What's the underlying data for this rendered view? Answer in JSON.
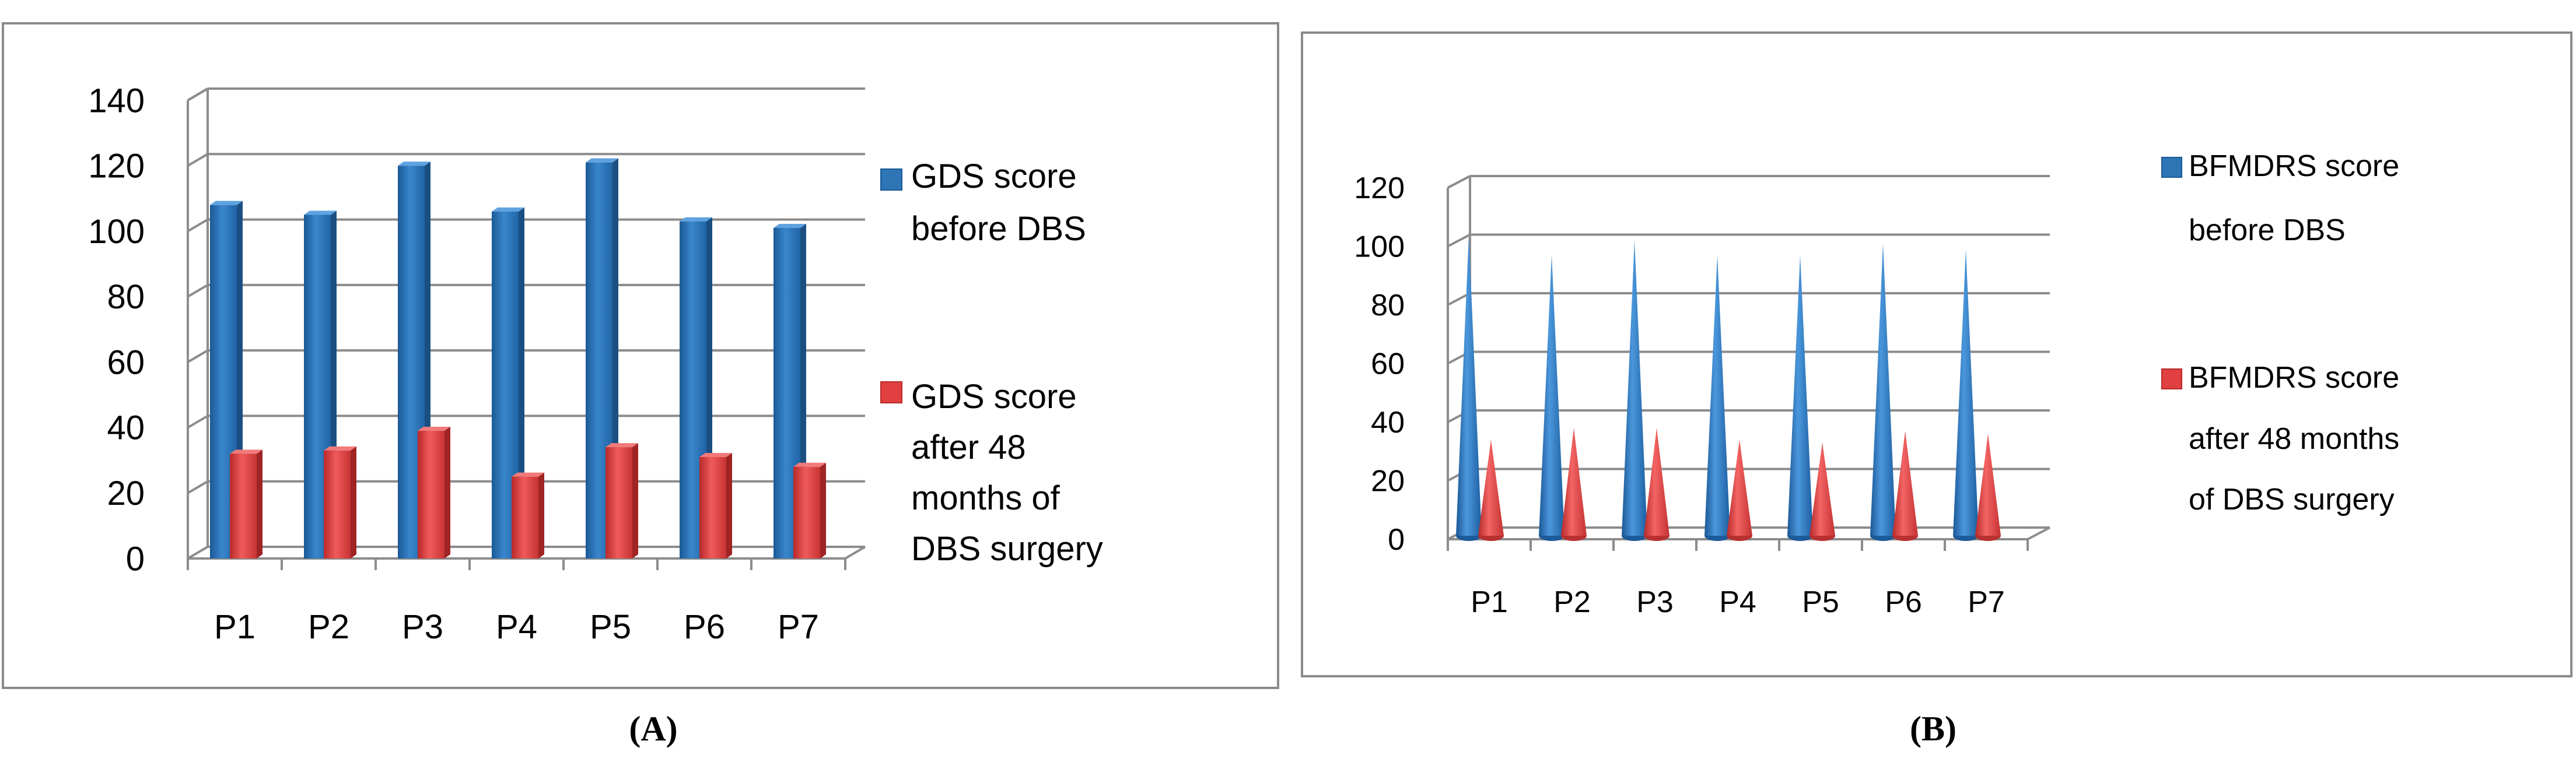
{
  "chart_data": [
    {
      "type": "bar",
      "panel_label": "(A)",
      "categories": [
        "P1",
        "P2",
        "P3",
        "P4",
        "P5",
        "P6",
        "P7"
      ],
      "series": [
        {
          "name": "GDS score before DBS",
          "values": [
            108,
            105,
            120,
            106,
            121,
            103,
            101
          ],
          "color": "#2e75b6"
        },
        {
          "name": "GDS score after 48 months of DBS surgery",
          "values": [
            32,
            33,
            39,
            25,
            34,
            31,
            28
          ],
          "color": "#e04040"
        }
      ],
      "legend": [
        {
          "lines": [
            "GDS score",
            "before DBS"
          ]
        },
        {
          "lines": [
            "GDS score",
            "after 48",
            "months of",
            "DBS surgery"
          ]
        }
      ],
      "yticks": [
        "0",
        "20",
        "40",
        "60",
        "80",
        "100",
        "120",
        "140"
      ],
      "ylim": [
        0,
        140
      ],
      "grid": true,
      "legend_position": "right"
    },
    {
      "type": "bar",
      "panel_label": "(B)",
      "categories": [
        "P1",
        "P2",
        "P3",
        "P4",
        "P5",
        "P6",
        "P7"
      ],
      "series": [
        {
          "name": "BFMDRS score before DBS",
          "values": [
            104,
            97,
            102,
            97,
            97,
            101,
            99
          ],
          "color": "#2e75b6"
        },
        {
          "name": "BFMDRS score after 48 months of DBS surgery",
          "values": [
            34,
            38,
            38,
            34,
            33,
            37,
            36
          ],
          "color": "#e04040"
        }
      ],
      "legend": [
        {
          "lines": [
            "BFMDRS score",
            "before DBS"
          ]
        },
        {
          "lines": [
            "BFMDRS score",
            "after 48 months",
            "of DBS surgery"
          ]
        }
      ],
      "yticks": [
        "0",
        "20",
        "40",
        "60",
        "80",
        "100",
        "120"
      ],
      "ylim": [
        0,
        120
      ],
      "grid": true,
      "legend_position": "right"
    }
  ]
}
